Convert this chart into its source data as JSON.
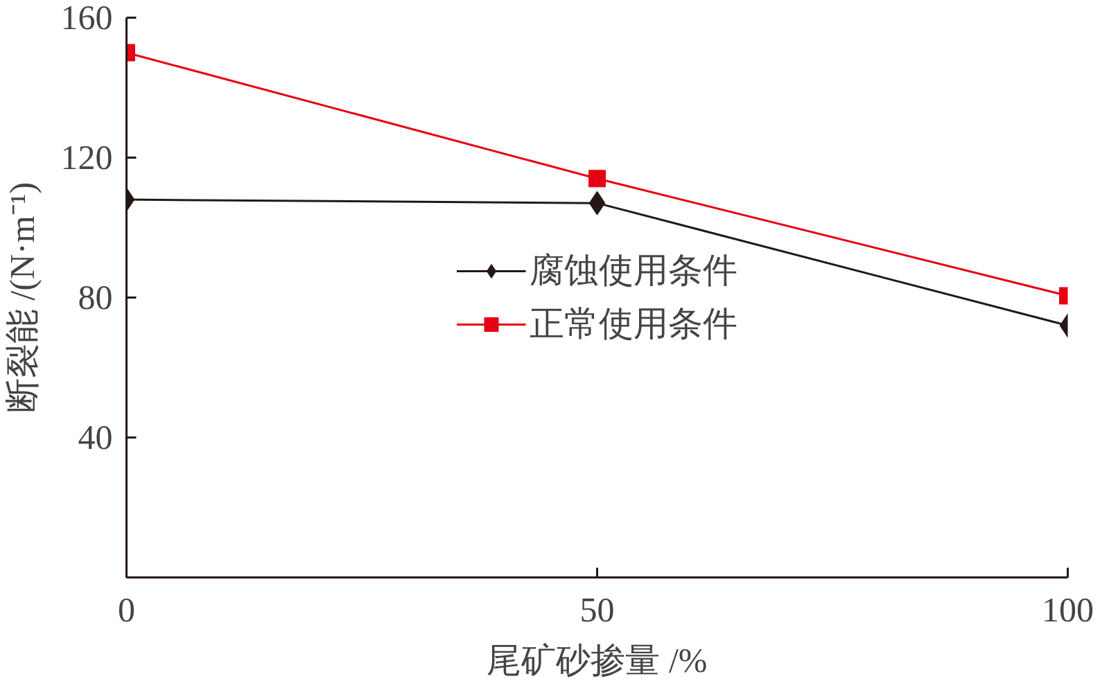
{
  "chart_data": {
    "type": "line",
    "xlabel": "尾矿砂掺量 /%",
    "ylabel": "断裂能 /(N·m⁻¹)",
    "x": [
      0,
      50,
      100
    ],
    "series": [
      {
        "name": "腐蚀使用条件",
        "color": "#231815",
        "values": [
          108,
          107,
          72
        ],
        "marker": "diamond"
      },
      {
        "name": "正常使用条件",
        "color": "#e60012",
        "values": [
          150,
          114,
          80.5
        ],
        "marker": "square"
      }
    ],
    "xlim": [
      0,
      100
    ],
    "ylim": [
      0,
      160
    ],
    "xticks": [
      0,
      50,
      100
    ],
    "yticks": [
      40,
      80,
      120,
      160
    ],
    "grid": false,
    "legend": "center",
    "line_style": "solid"
  }
}
